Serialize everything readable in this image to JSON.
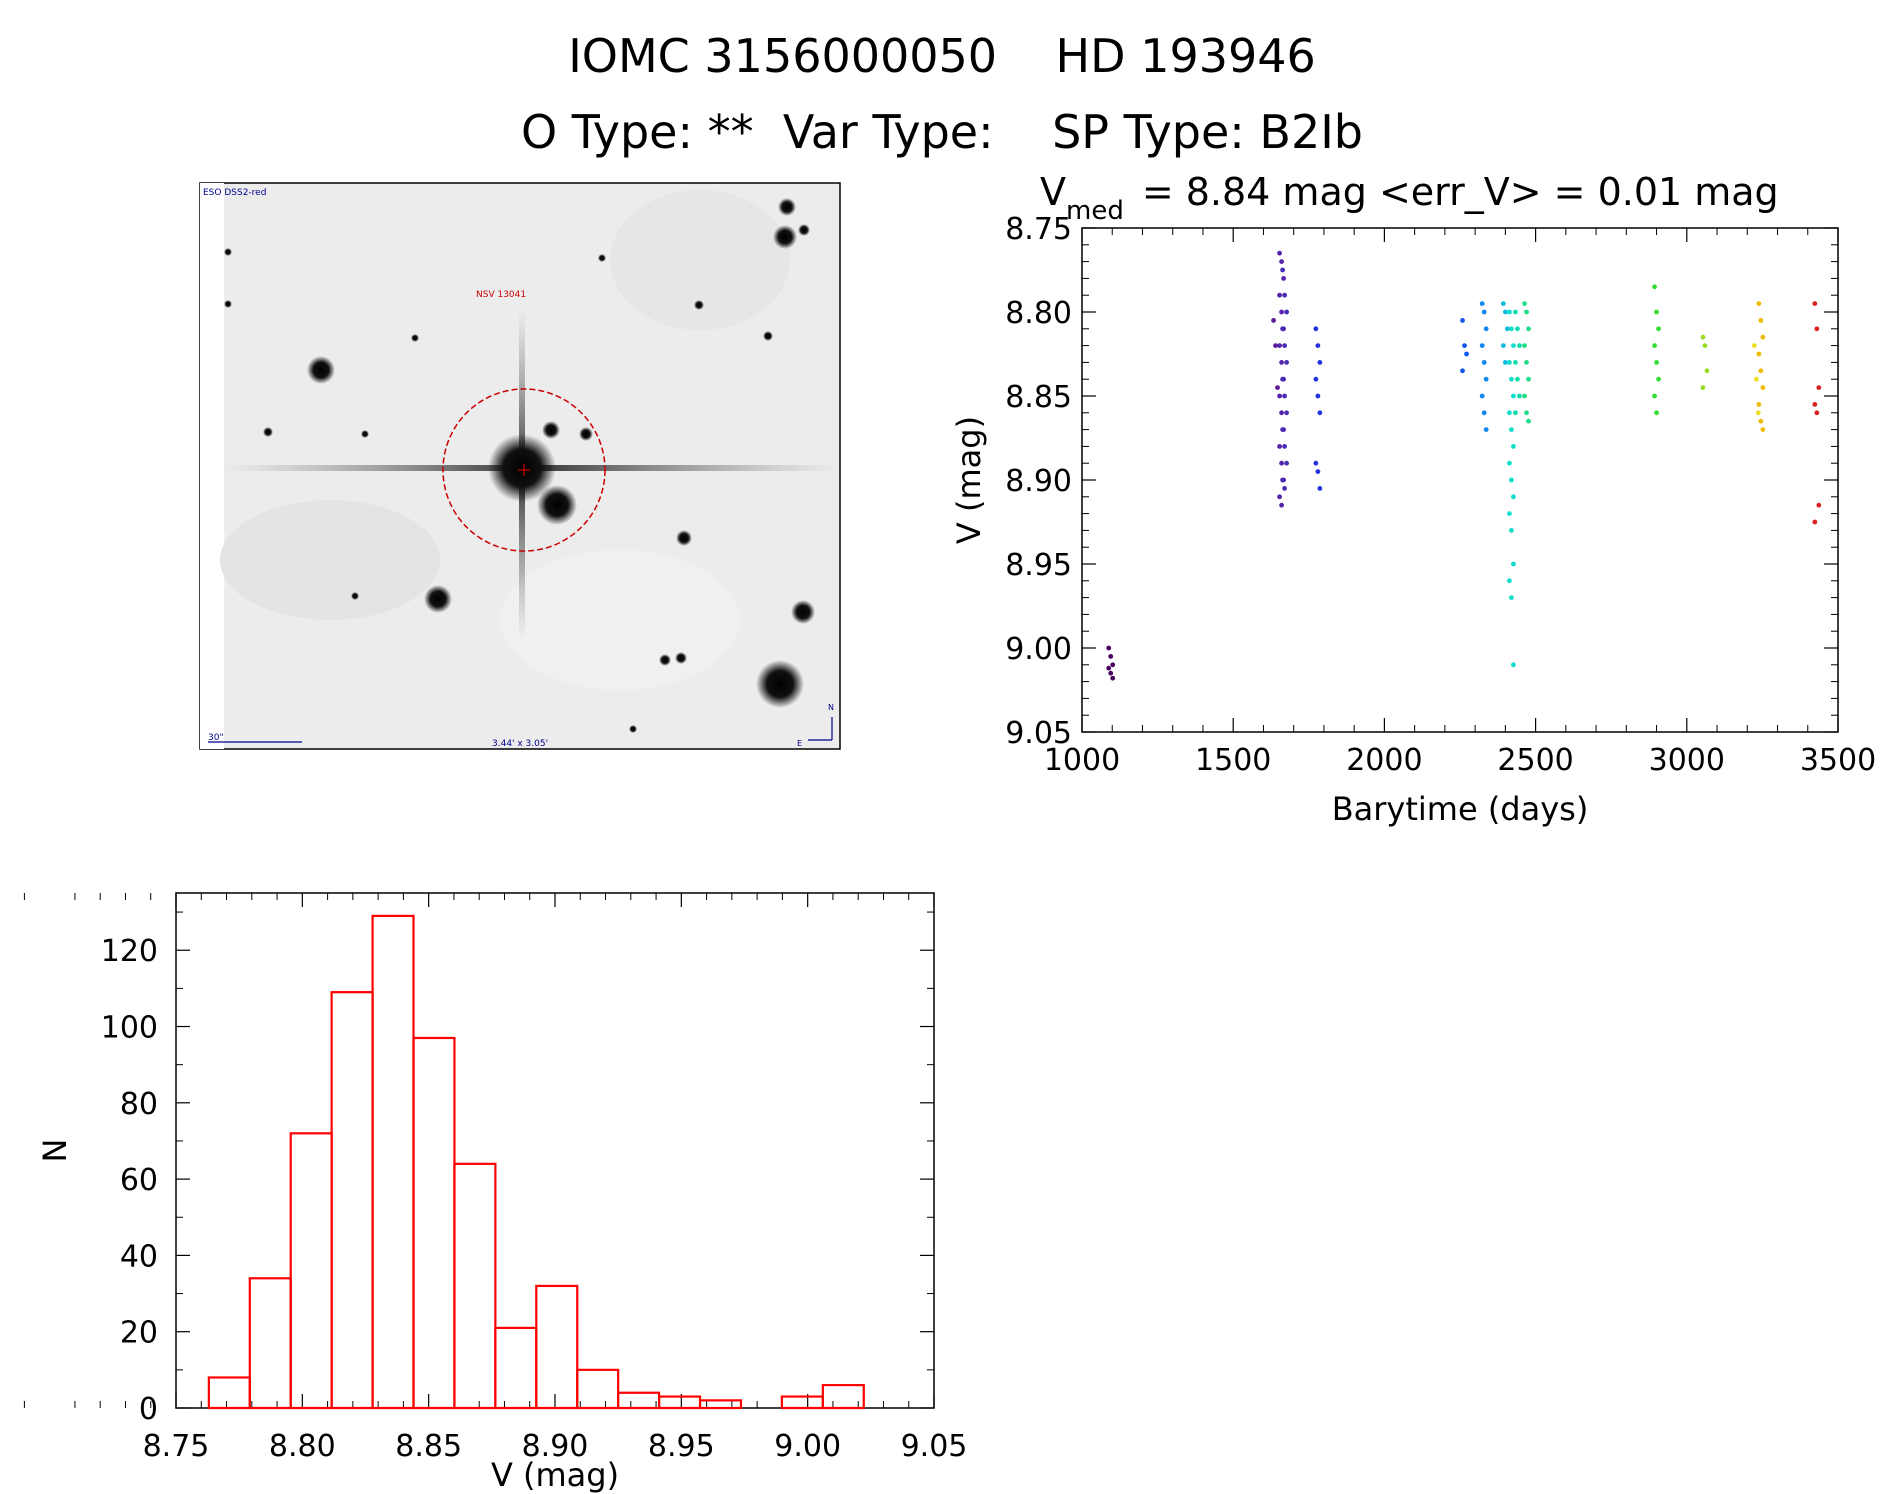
{
  "header": {
    "title": "IOMC 3156000050    HD 193946",
    "subtitle": "O Type: **  Var Type:    SP Type: B2Ib"
  },
  "finder_chart": {
    "survey_label": "ESO DSS2-red",
    "target_label": "NSV 13041",
    "scale_label": "30\"",
    "field_label": "3.44' x 3.05'",
    "north_label": "N",
    "east_label": "E"
  },
  "lightcurve_header": {
    "v_symbol": "V",
    "v_subscript": "med",
    "stats_text": "= 8.84 mag <err_V> = 0.01 mag"
  },
  "chart_data": [
    {
      "type": "scatter",
      "title": "V_med = 8.84 mag <err_V> = 0.01 mag",
      "xlabel": "Barytime (days)",
      "ylabel": "V (mag)",
      "xlim": [
        1000,
        3500
      ],
      "ylim": [
        9.05,
        8.75
      ],
      "xticks": [
        "1000",
        "1500",
        "2000",
        "2500",
        "3000",
        "3500"
      ],
      "yticks": [
        "8.75",
        "8.80",
        "8.85",
        "8.90",
        "8.95",
        "9.00",
        "9.05"
      ],
      "groups": [
        {
          "x": 1095,
          "color": "#4a0060",
          "y": [
            9.0,
            9.005,
            9.01,
            9.012,
            9.015,
            9.018
          ]
        },
        {
          "x": 1640,
          "color": "#5a1a9a",
          "y": [
            8.805,
            8.82,
            8.845
          ]
        },
        {
          "x": 1660,
          "color": "#5522aa",
          "y": [
            8.765,
            8.77,
            8.78,
            8.79,
            8.8,
            8.81,
            8.82,
            8.83,
            8.84,
            8.85,
            8.86,
            8.87,
            8.88,
            8.89,
            8.9,
            8.91,
            8.915
          ]
        },
        {
          "x": 1670,
          "color": "#4a2bb5",
          "y": [
            8.775,
            8.79,
            8.8,
            8.81,
            8.82,
            8.83,
            8.84,
            8.85,
            8.86,
            8.87,
            8.88,
            8.89,
            8.9,
            8.905
          ]
        },
        {
          "x": 1780,
          "color": "#2233dd",
          "y": [
            8.81,
            8.82,
            8.83,
            8.84,
            8.85,
            8.86,
            8.89,
            8.895,
            8.905
          ]
        },
        {
          "x": 2265,
          "color": "#1155ee",
          "y": [
            8.805,
            8.82,
            8.825,
            8.835
          ]
        },
        {
          "x": 2330,
          "color": "#1188ee",
          "y": [
            8.795,
            8.8,
            8.81,
            8.82,
            8.83,
            8.84,
            8.85,
            8.86,
            8.87
          ]
        },
        {
          "x": 2400,
          "color": "#11bbdd",
          "y": [
            8.795,
            8.8,
            8.81,
            8.82,
            8.83
          ]
        },
        {
          "x": 2420,
          "color": "#11ddcc",
          "y": [
            8.8,
            8.81,
            8.82,
            8.83,
            8.84,
            8.85,
            8.86,
            8.87,
            8.88,
            8.89,
            8.9,
            8.91,
            8.92,
            8.93,
            8.95,
            8.96,
            8.97,
            9.01
          ]
        },
        {
          "x": 2440,
          "color": "#11ddaa",
          "y": [
            8.8,
            8.81,
            8.82,
            8.83,
            8.84,
            8.85,
            8.86
          ]
        },
        {
          "x": 2470,
          "color": "#22dd88",
          "y": [
            8.795,
            8.8,
            8.81,
            8.82,
            8.83,
            8.84,
            8.85,
            8.86,
            8.865
          ]
        },
        {
          "x": 2900,
          "color": "#33dd33",
          "y": [
            8.785,
            8.8,
            8.81,
            8.82,
            8.83,
            8.84,
            8.85,
            8.86
          ]
        },
        {
          "x": 3060,
          "color": "#99dd22",
          "y": [
            8.815,
            8.82,
            8.835,
            8.845
          ]
        },
        {
          "x": 3245,
          "color": "#eebb00",
          "y": [
            8.795,
            8.805,
            8.815,
            8.825,
            8.835,
            8.845,
            8.855,
            8.865,
            8.87
          ]
        },
        {
          "x": 3230,
          "color": "#eedd22",
          "y": [
            8.82,
            8.84,
            8.86
          ]
        },
        {
          "x": 3430,
          "color": "#dd2222",
          "y": [
            8.795,
            8.81,
            8.845,
            8.855,
            8.86,
            8.915,
            8.925
          ]
        }
      ]
    },
    {
      "type": "bar",
      "title": "",
      "xlabel": "V (mag)",
      "ylabel": "N",
      "xlim": [
        8.75,
        9.05
      ],
      "ylim": [
        0,
        135
      ],
      "xticks": [
        "8.75",
        "8.80",
        "8.85",
        "8.90",
        "8.95",
        "9.00",
        "9.05"
      ],
      "yticks": [
        "0",
        "20",
        "40",
        "60",
        "80",
        "100",
        "120"
      ],
      "bin_edges": [
        8.763,
        8.7792,
        8.7954,
        8.8116,
        8.8278,
        8.844,
        8.8602,
        8.8764,
        8.8926,
        8.9088,
        8.925,
        8.9412,
        8.9574,
        8.9736,
        8.9898,
        9.006,
        9.0222
      ],
      "values": [
        8,
        34,
        72,
        109,
        129,
        97,
        64,
        21,
        32,
        10,
        4,
        3,
        2,
        0,
        3,
        6
      ],
      "color": "#ff0000"
    }
  ]
}
